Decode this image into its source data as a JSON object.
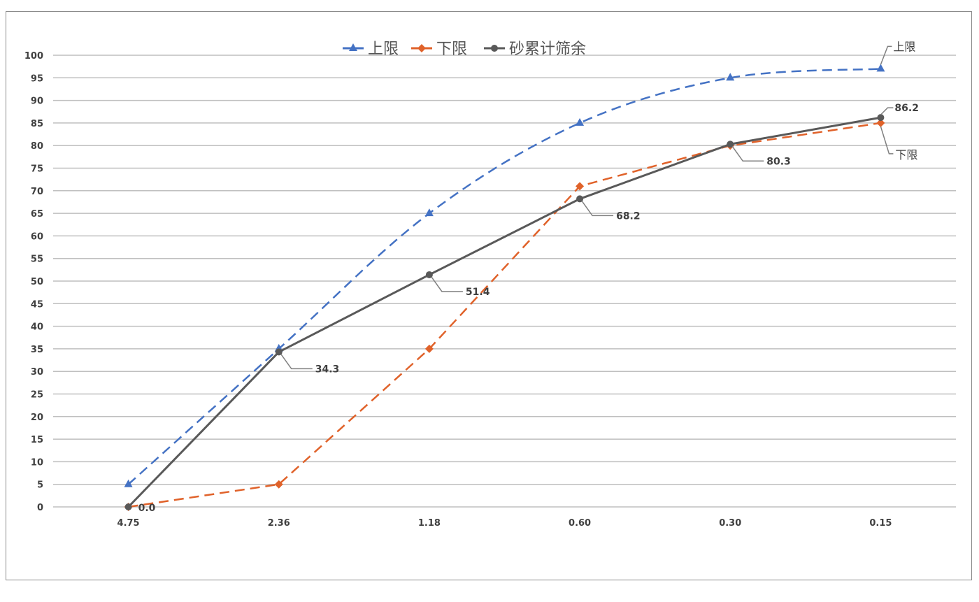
{
  "chart_data": {
    "type": "line",
    "title": "",
    "xlabel": "",
    "ylabel": "",
    "categories": [
      "4.75",
      "2.36",
      "1.18",
      "0.60",
      "0.30",
      "0.15"
    ],
    "ylim": [
      0,
      100
    ],
    "yticks": [
      0,
      5,
      10,
      15,
      20,
      25,
      30,
      35,
      40,
      45,
      50,
      55,
      60,
      65,
      70,
      75,
      80,
      85,
      90,
      95,
      100
    ],
    "grid": true,
    "legend_position": "top",
    "series": [
      {
        "name": "上限",
        "values": [
          5,
          35,
          65,
          85,
          95,
          97
        ],
        "color": "#4472c4",
        "style": "dashed",
        "marker": "triangle",
        "smooth": true,
        "end_label": "上限"
      },
      {
        "name": "下限",
        "values": [
          0,
          5,
          35,
          71,
          80,
          85
        ],
        "color": "#e0622a",
        "style": "dashed",
        "marker": "diamond",
        "smooth": false,
        "end_label": "下限"
      },
      {
        "name": "砂累计筛余",
        "values": [
          0.0,
          34.3,
          51.4,
          68.2,
          80.3,
          86.2
        ],
        "color": "#595959",
        "style": "solid",
        "marker": "circle",
        "smooth": false,
        "data_labels": [
          "0.0",
          "34.3",
          "51.4",
          "68.2",
          "80.3",
          "86.2"
        ]
      }
    ]
  }
}
